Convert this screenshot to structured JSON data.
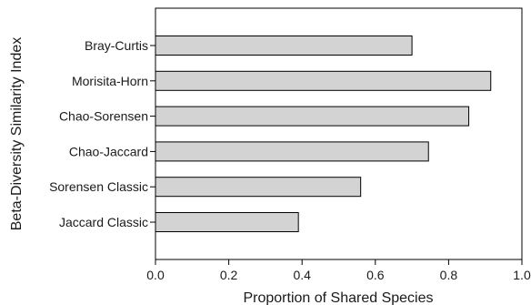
{
  "chart_data": {
    "type": "bar",
    "orientation": "horizontal",
    "categories": [
      "Bray-Curtis",
      "Morisita-Horn",
      "Chao-Sorensen",
      "Chao-Jaccard",
      "Sorensen Classic",
      "Jaccard Classic"
    ],
    "values": [
      0.7,
      0.915,
      0.855,
      0.745,
      0.56,
      0.39
    ],
    "title": "",
    "xlabel": "Proportion of Shared Species",
    "ylabel": "Beta-Diversity Similarity Index",
    "xlim": [
      0.0,
      1.0
    ],
    "xticks": [
      "0.0",
      "0.2",
      "0.4",
      "0.6",
      "0.8",
      "1.0"
    ],
    "grid": false,
    "legend": "none",
    "colors": {
      "bar_fill": "#d3d3d3",
      "bar_stroke": "#000000",
      "axis": "#000000"
    }
  }
}
